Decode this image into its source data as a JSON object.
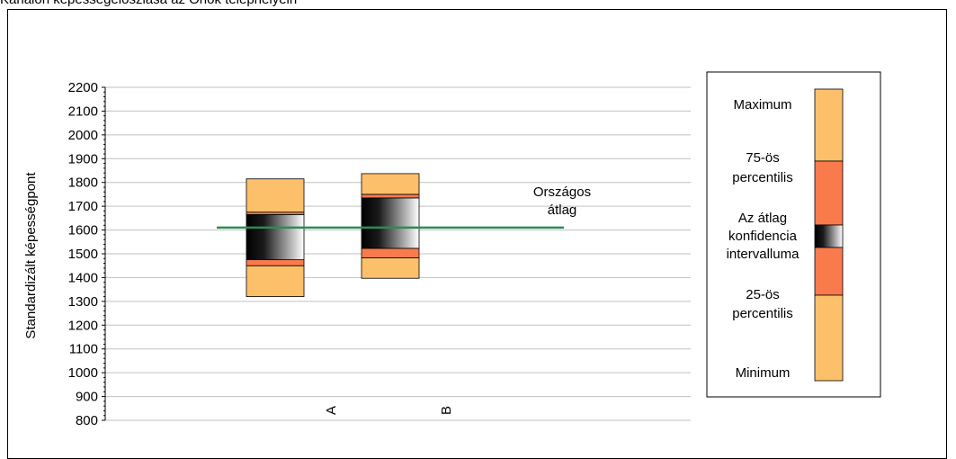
{
  "title": "Kanalón képességeloszlása az Önök telephelyein",
  "chart_data": {
    "type": "box",
    "ylabel": "Standardizált képességpont",
    "ylim": [
      800,
      2200
    ],
    "yticks": [
      800,
      900,
      1000,
      1100,
      1200,
      1300,
      1400,
      1500,
      1600,
      1700,
      1800,
      1900,
      2000,
      2100,
      2200
    ],
    "grid": true,
    "categories": [
      "A",
      "B"
    ],
    "boxes": [
      {
        "category": "A",
        "min": 1320,
        "p25": 1450,
        "ci_low": 1475,
        "ci_high": 1665,
        "p75": 1675,
        "max": 1815
      },
      {
        "category": "B",
        "min": 1397,
        "p25": 1483,
        "ci_low": 1523,
        "ci_high": 1735,
        "p75": 1750,
        "max": 1837
      }
    ],
    "reference_line": {
      "value": 1610,
      "label_line1": "Országos",
      "label_line2": "átlag",
      "color": "#2e8b57"
    },
    "colors": {
      "outer": "#fdc06a",
      "inner": "#f97a4c",
      "ci_dark": "#000000",
      "ci_light": "#ffffff"
    },
    "legend": {
      "placement": "right",
      "maximum": "Maximum",
      "p75_line1": "75-ös",
      "p75_line2": "percentilis",
      "ci_line1": "Az átlag",
      "ci_line2": "konfidencia",
      "ci_line3": "intervalluma",
      "p25_line1": "25-ös",
      "p25_line2": "percentilis",
      "minimum": "Minimum"
    }
  }
}
